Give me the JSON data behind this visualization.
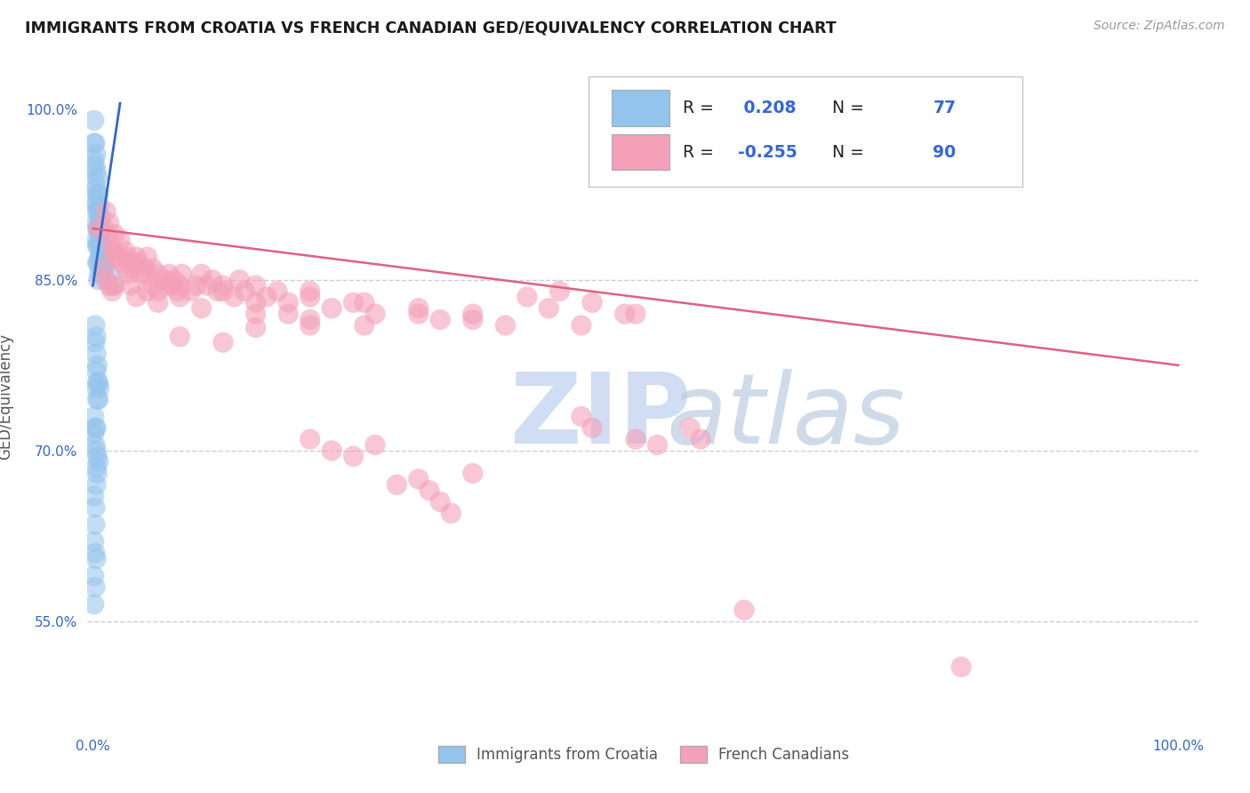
{
  "title": "IMMIGRANTS FROM CROATIA VS FRENCH CANADIAN GED/EQUIVALENCY CORRELATION CHART",
  "source_text": "Source: ZipAtlas.com",
  "ylabel": "GED/Equivalency",
  "R_blue": 0.208,
  "N_blue": 77,
  "R_pink": -0.255,
  "N_pink": 90,
  "blue_color": "#93C4EC",
  "pink_color": "#F4A0B8",
  "blue_line_color": "#3366CC",
  "pink_line_color": "#E06080",
  "legend_label_blue": "Immigrants from Croatia",
  "legend_label_pink": "French Canadians",
  "blue_line_x": [
    0.0,
    0.025
  ],
  "blue_line_y": [
    0.845,
    1.005
  ],
  "pink_line_x": [
    0.0,
    1.0
  ],
  "pink_line_y": [
    0.895,
    0.775
  ],
  "xlim": [
    -0.005,
    1.02
  ],
  "ylim": [
    0.455,
    1.04
  ],
  "xticks": [
    0.0,
    1.0
  ],
  "xtick_labels": [
    "0.0%",
    "100.0%"
  ],
  "yticks": [
    0.55,
    0.7,
    0.85,
    1.0
  ],
  "ytick_labels": [
    "55.0%",
    "70.0%",
    "85.0%",
    "100.0%"
  ],
  "grid_color": "#CCCCDD",
  "grid_yticks": [
    0.85,
    0.7,
    0.55
  ],
  "blue_points": [
    [
      0.001,
      0.99
    ],
    [
      0.001,
      0.97
    ],
    [
      0.001,
      0.955
    ],
    [
      0.002,
      0.97
    ],
    [
      0.002,
      0.95
    ],
    [
      0.002,
      0.935
    ],
    [
      0.002,
      0.92
    ],
    [
      0.003,
      0.96
    ],
    [
      0.003,
      0.945
    ],
    [
      0.003,
      0.93
    ],
    [
      0.003,
      0.915
    ],
    [
      0.003,
      0.9
    ],
    [
      0.003,
      0.885
    ],
    [
      0.004,
      0.94
    ],
    [
      0.004,
      0.925
    ],
    [
      0.004,
      0.91
    ],
    [
      0.004,
      0.895
    ],
    [
      0.004,
      0.88
    ],
    [
      0.004,
      0.865
    ],
    [
      0.005,
      0.925
    ],
    [
      0.005,
      0.91
    ],
    [
      0.005,
      0.895
    ],
    [
      0.005,
      0.88
    ],
    [
      0.005,
      0.865
    ],
    [
      0.005,
      0.85
    ],
    [
      0.006,
      0.915
    ],
    [
      0.006,
      0.9
    ],
    [
      0.006,
      0.885
    ],
    [
      0.006,
      0.87
    ],
    [
      0.006,
      0.855
    ],
    [
      0.007,
      0.905
    ],
    [
      0.007,
      0.89
    ],
    [
      0.007,
      0.875
    ],
    [
      0.007,
      0.86
    ],
    [
      0.008,
      0.895
    ],
    [
      0.008,
      0.88
    ],
    [
      0.008,
      0.865
    ],
    [
      0.009,
      0.88
    ],
    [
      0.009,
      0.865
    ],
    [
      0.01,
      0.875
    ],
    [
      0.01,
      0.86
    ],
    [
      0.011,
      0.87
    ],
    [
      0.012,
      0.865
    ],
    [
      0.015,
      0.855
    ],
    [
      0.018,
      0.845
    ],
    [
      0.002,
      0.81
    ],
    [
      0.002,
      0.795
    ],
    [
      0.003,
      0.8
    ],
    [
      0.003,
      0.785
    ],
    [
      0.003,
      0.77
    ],
    [
      0.003,
      0.755
    ],
    [
      0.004,
      0.775
    ],
    [
      0.004,
      0.76
    ],
    [
      0.004,
      0.745
    ],
    [
      0.005,
      0.76
    ],
    [
      0.005,
      0.745
    ],
    [
      0.006,
      0.755
    ],
    [
      0.001,
      0.73
    ],
    [
      0.001,
      0.715
    ],
    [
      0.002,
      0.72
    ],
    [
      0.002,
      0.705
    ],
    [
      0.003,
      0.72
    ],
    [
      0.003,
      0.7
    ],
    [
      0.003,
      0.685
    ],
    [
      0.003,
      0.67
    ],
    [
      0.004,
      0.695
    ],
    [
      0.004,
      0.68
    ],
    [
      0.005,
      0.69
    ],
    [
      0.001,
      0.66
    ],
    [
      0.002,
      0.65
    ],
    [
      0.002,
      0.635
    ],
    [
      0.001,
      0.62
    ],
    [
      0.002,
      0.61
    ],
    [
      0.003,
      0.605
    ],
    [
      0.001,
      0.59
    ],
    [
      0.002,
      0.58
    ],
    [
      0.001,
      0.565
    ]
  ],
  "pink_points": [
    [
      0.005,
      0.895
    ],
    [
      0.01,
      0.895
    ],
    [
      0.012,
      0.91
    ],
    [
      0.015,
      0.9
    ],
    [
      0.015,
      0.885
    ],
    [
      0.018,
      0.875
    ],
    [
      0.02,
      0.89
    ],
    [
      0.02,
      0.875
    ],
    [
      0.022,
      0.87
    ],
    [
      0.025,
      0.885
    ],
    [
      0.025,
      0.87
    ],
    [
      0.028,
      0.865
    ],
    [
      0.03,
      0.875
    ],
    [
      0.03,
      0.86
    ],
    [
      0.032,
      0.87
    ],
    [
      0.033,
      0.855
    ],
    [
      0.035,
      0.865
    ],
    [
      0.038,
      0.86
    ],
    [
      0.04,
      0.87
    ],
    [
      0.042,
      0.865
    ],
    [
      0.045,
      0.855
    ],
    [
      0.048,
      0.86
    ],
    [
      0.05,
      0.87
    ],
    [
      0.05,
      0.855
    ],
    [
      0.055,
      0.86
    ],
    [
      0.055,
      0.845
    ],
    [
      0.06,
      0.855
    ],
    [
      0.06,
      0.84
    ],
    [
      0.065,
      0.85
    ],
    [
      0.068,
      0.845
    ],
    [
      0.07,
      0.855
    ],
    [
      0.072,
      0.845
    ],
    [
      0.075,
      0.85
    ],
    [
      0.078,
      0.84
    ],
    [
      0.08,
      0.845
    ],
    [
      0.082,
      0.855
    ],
    [
      0.09,
      0.84
    ],
    [
      0.095,
      0.845
    ],
    [
      0.1,
      0.855
    ],
    [
      0.105,
      0.845
    ],
    [
      0.11,
      0.85
    ],
    [
      0.115,
      0.84
    ],
    [
      0.12,
      0.845
    ],
    [
      0.13,
      0.835
    ],
    [
      0.135,
      0.85
    ],
    [
      0.14,
      0.84
    ],
    [
      0.15,
      0.845
    ],
    [
      0.16,
      0.835
    ],
    [
      0.17,
      0.84
    ],
    [
      0.18,
      0.83
    ],
    [
      0.2,
      0.835
    ],
    [
      0.22,
      0.825
    ],
    [
      0.24,
      0.83
    ],
    [
      0.26,
      0.82
    ],
    [
      0.3,
      0.825
    ],
    [
      0.32,
      0.815
    ],
    [
      0.35,
      0.82
    ],
    [
      0.38,
      0.81
    ],
    [
      0.01,
      0.86
    ],
    [
      0.012,
      0.85
    ],
    [
      0.015,
      0.845
    ],
    [
      0.018,
      0.84
    ],
    [
      0.02,
      0.845
    ],
    [
      0.035,
      0.845
    ],
    [
      0.04,
      0.835
    ],
    [
      0.05,
      0.84
    ],
    [
      0.06,
      0.83
    ],
    [
      0.08,
      0.835
    ],
    [
      0.1,
      0.825
    ],
    [
      0.15,
      0.82
    ],
    [
      0.2,
      0.815
    ],
    [
      0.12,
      0.84
    ],
    [
      0.15,
      0.83
    ],
    [
      0.2,
      0.84
    ],
    [
      0.25,
      0.83
    ],
    [
      0.18,
      0.82
    ],
    [
      0.3,
      0.82
    ],
    [
      0.35,
      0.815
    ],
    [
      0.4,
      0.835
    ],
    [
      0.42,
      0.825
    ],
    [
      0.43,
      0.84
    ],
    [
      0.46,
      0.83
    ],
    [
      0.49,
      0.82
    ],
    [
      0.15,
      0.808
    ],
    [
      0.2,
      0.81
    ],
    [
      0.25,
      0.81
    ],
    [
      0.08,
      0.8
    ],
    [
      0.12,
      0.795
    ],
    [
      0.45,
      0.81
    ],
    [
      0.5,
      0.82
    ],
    [
      0.45,
      0.73
    ],
    [
      0.46,
      0.72
    ],
    [
      0.5,
      0.71
    ],
    [
      0.52,
      0.705
    ],
    [
      0.55,
      0.72
    ],
    [
      0.56,
      0.71
    ],
    [
      0.2,
      0.71
    ],
    [
      0.22,
      0.7
    ],
    [
      0.24,
      0.695
    ],
    [
      0.26,
      0.705
    ],
    [
      0.35,
      0.68
    ],
    [
      0.3,
      0.675
    ],
    [
      0.31,
      0.665
    ],
    [
      0.28,
      0.67
    ],
    [
      0.32,
      0.655
    ],
    [
      0.33,
      0.645
    ],
    [
      0.6,
      0.56
    ],
    [
      0.8,
      0.51
    ]
  ],
  "watermark_zip_color": "#C8D8F0",
  "watermark_atlas_color": "#BCCCE0",
  "background_color": "#FFFFFF"
}
